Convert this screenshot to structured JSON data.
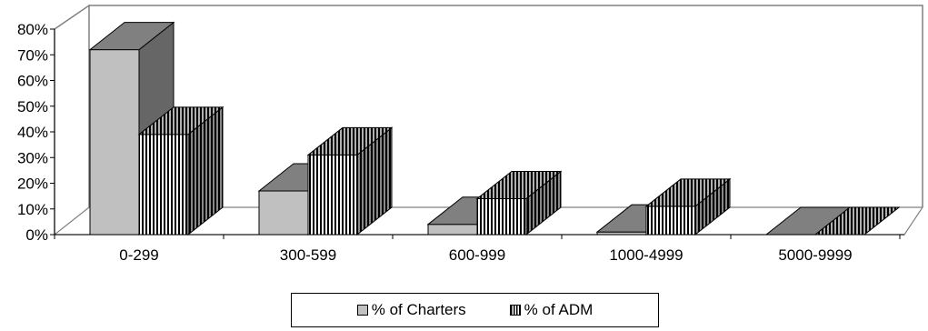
{
  "chart_data": {
    "type": "bar",
    "style": "3d-clustered",
    "categories": [
      "0-299",
      "300-599",
      "600-999",
      "1000-4999",
      "5000-9999"
    ],
    "series": [
      {
        "name": "% of Charters",
        "values": [
          72,
          17,
          4,
          1,
          0
        ],
        "color": "#c0c0c0",
        "pattern": "solid"
      },
      {
        "name": "% of ADM",
        "values": [
          39,
          31,
          14,
          11,
          0
        ],
        "color": "#ffffff",
        "pattern": "vertical-stripes"
      }
    ],
    "y_ticks": [
      "0%",
      "10%",
      "20%",
      "30%",
      "40%",
      "50%",
      "60%",
      "70%",
      "80%"
    ],
    "ylim": [
      0,
      80
    ],
    "y_unit": "%",
    "title": "",
    "xlabel": "",
    "ylabel": "",
    "legend_position": "bottom",
    "grid": false
  }
}
